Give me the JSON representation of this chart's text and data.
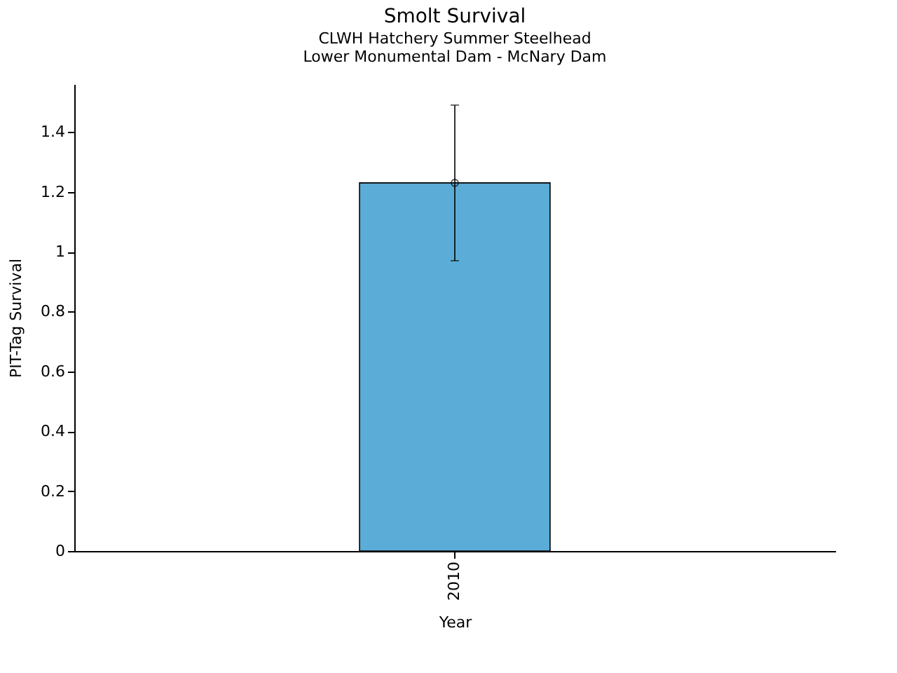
{
  "chart_data": {
    "type": "bar",
    "title": "Smolt Survival",
    "subtitle": [
      "CLWH Hatchery Summer Steelhead",
      "Lower Monumental Dam - McNary Dam"
    ],
    "xlabel": "Year",
    "ylabel": "PIT-Tag Survival",
    "categories": [
      "2010"
    ],
    "series": [
      {
        "color": "#5bacd6",
        "values": [
          1.23
        ],
        "errors": [
          [
            0.97,
            1.49
          ]
        ]
      },
      {
        "type": "scatter",
        "color": "#000000",
        "values": [
          1.23
        ],
        "marker": "circle"
      }
    ],
    "ylim": [
      0,
      1.56
    ],
    "yticks": [
      {
        "value": 0,
        "label": "0"
      },
      0.2,
      0.4,
      0.6,
      0.8,
      {
        "value": 1,
        "label": "1"
      },
      1.2,
      1.4
    ],
    "grid": false
  }
}
